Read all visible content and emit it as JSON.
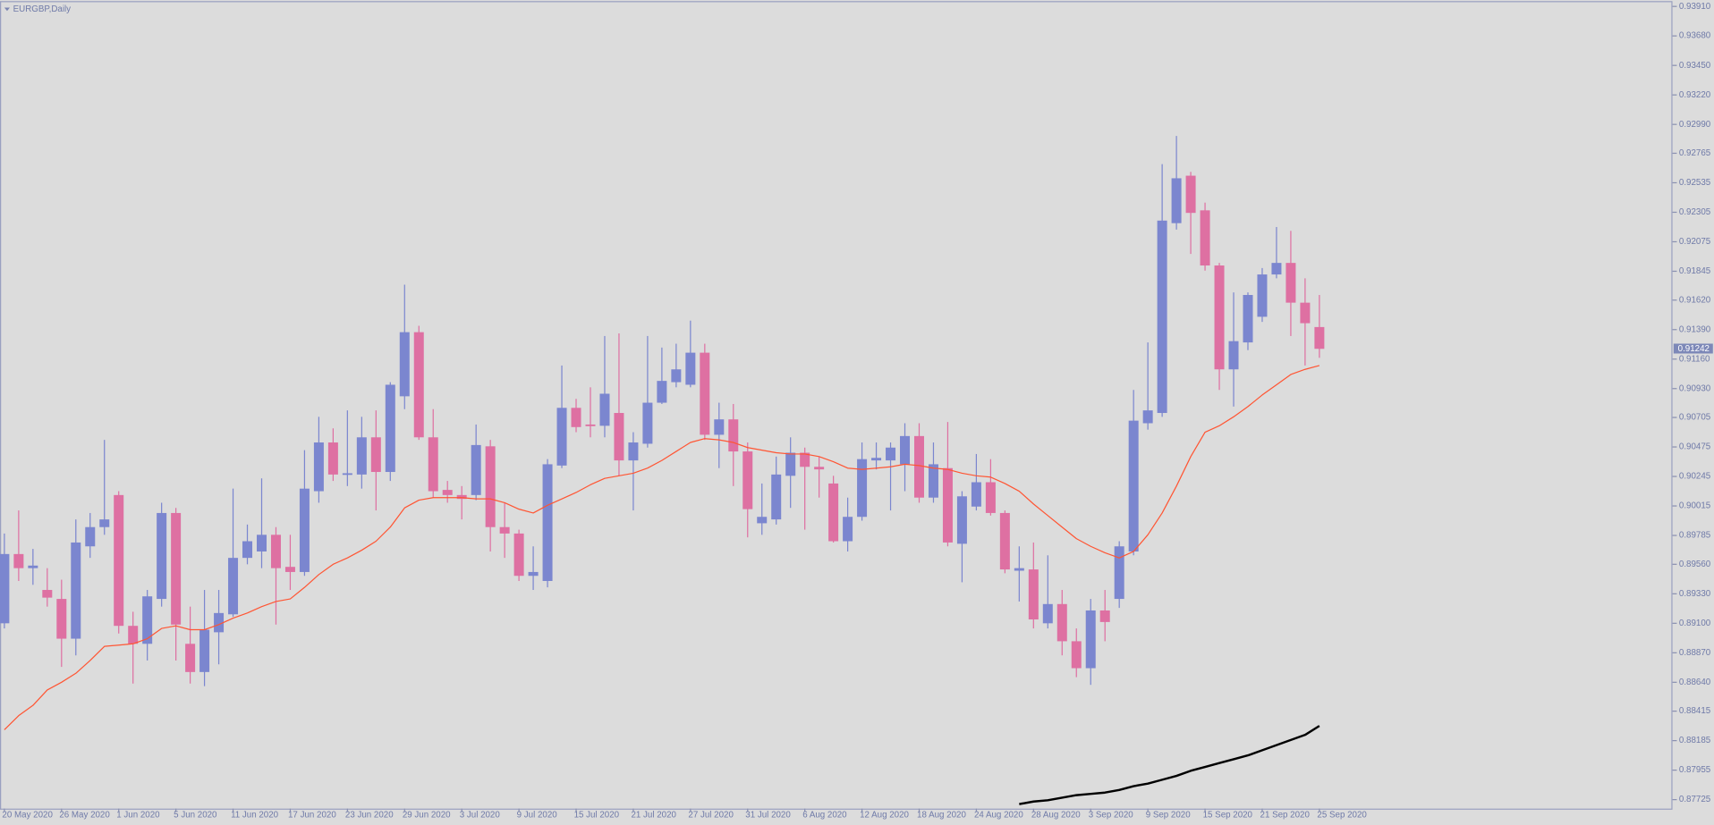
{
  "chart_data": {
    "type": "candlestick",
    "title": "EURGBP,Daily",
    "categories": [
      "20 May 2020",
      null,
      null,
      null,
      "26 May 2020",
      null,
      null,
      null,
      "1 Jun 2020",
      null,
      null,
      null,
      "5 Jun 2020",
      null,
      null,
      null,
      "11 Jun 2020",
      null,
      null,
      null,
      "17 Jun 2020",
      null,
      null,
      null,
      "23 Jun 2020",
      null,
      null,
      null,
      "29 Jun 2020",
      null,
      null,
      null,
      "3 Jul 2020",
      null,
      null,
      null,
      "9 Jul 2020",
      null,
      null,
      null,
      "15 Jul 2020",
      null,
      null,
      null,
      "21 Jul 2020",
      null,
      null,
      null,
      "27 Jul 2020",
      null,
      null,
      null,
      "31 Jul 2020",
      null,
      null,
      null,
      "6 Aug 2020",
      null,
      null,
      null,
      "12 Aug 2020",
      null,
      null,
      null,
      "18 Aug 2020",
      null,
      null,
      null,
      "24 Aug 2020",
      null,
      null,
      null,
      "28 Aug 2020",
      null,
      null,
      null,
      "3 Sep 2020",
      null,
      null,
      null,
      "9 Sep 2020",
      null,
      null,
      null,
      "15 Sep 2020",
      null,
      null,
      null,
      "21 Sep 2020",
      null,
      null,
      null,
      "25 Sep 2020"
    ],
    "open": [
      0.891,
      0.8964,
      0.8953,
      0.8936,
      0.8929,
      0.8898,
      0.897,
      0.8985,
      0.901,
      0.8908,
      0.8894,
      0.8929,
      0.8996,
      0.8894,
      0.8872,
      0.8903,
      0.8917,
      0.8961,
      0.8966,
      0.8979,
      0.8954,
      0.895,
      0.9013,
      0.9051,
      0.9026,
      0.9026,
      0.9055,
      0.9028,
      0.9087,
      0.9137,
      0.9055,
      0.9014,
      0.901,
      0.901,
      0.9048,
      0.8985,
      0.898,
      0.8947,
      0.8943,
      0.9033,
      0.9078,
      0.9065,
      0.9064,
      0.9074,
      0.9037,
      0.905,
      0.9082,
      0.9098,
      0.9096,
      0.9121,
      0.9057,
      0.9069,
      0.9044,
      0.8988,
      0.8991,
      0.9025,
      0.9043,
      0.9032,
      0.9019,
      0.8974,
      0.8993,
      0.9037,
      0.9037,
      0.9034,
      0.9056,
      0.9008,
      0.9031,
      0.8972,
      0.9001,
      0.902,
      0.8996,
      0.8951,
      0.8952,
      0.891,
      0.8925,
      0.8896,
      0.8875,
      0.892,
      0.8929,
      0.8966,
      0.9066,
      0.9074,
      0.9222,
      0.9259,
      0.9232,
      0.9189,
      0.9108,
      0.9129,
      0.9149,
      0.9182,
      0.9191,
      0.916,
      0.9141
    ],
    "high": [
      0.898,
      0.8998,
      0.8968,
      0.8953,
      0.8944,
      0.8991,
      0.8996,
      0.9053,
      0.9013,
      0.8919,
      0.8936,
      0.9004,
      0.9,
      0.8923,
      0.8936,
      0.8936,
      0.9015,
      0.8987,
      0.9023,
      0.8985,
      0.8979,
      0.9045,
      0.9071,
      0.9062,
      0.9076,
      0.9071,
      0.9076,
      0.9098,
      0.9174,
      0.9142,
      0.9077,
      0.9021,
      0.9017,
      0.9065,
      0.9053,
      0.9004,
      0.8983,
      0.897,
      0.9038,
      0.9111,
      0.9085,
      0.9094,
      0.9134,
      0.9136,
      0.9059,
      0.9134,
      0.9125,
      0.9128,
      0.9146,
      0.9128,
      0.9082,
      0.9081,
      0.9051,
      0.9019,
      0.904,
      0.9055,
      0.9047,
      0.904,
      0.9025,
      0.9008,
      0.9051,
      0.9051,
      0.9051,
      0.9066,
      0.9066,
      0.9051,
      0.9067,
      0.9013,
      0.9042,
      0.9038,
      0.8998,
      0.897,
      0.8973,
      0.8963,
      0.8936,
      0.8906,
      0.8929,
      0.8936,
      0.8974,
      0.9092,
      0.9129,
      0.9268,
      0.929,
      0.9262,
      0.9238,
      0.9191,
      0.9168,
      0.9168,
      0.9187,
      0.9219,
      0.9216,
      0.9179,
      0.9166
    ],
    "low": [
      0.8906,
      0.8943,
      0.894,
      0.8923,
      0.8876,
      0.8885,
      0.8961,
      0.8979,
      0.8902,
      0.8863,
      0.8881,
      0.8923,
      0.8881,
      0.8863,
      0.8861,
      0.8878,
      0.8915,
      0.8956,
      0.8953,
      0.8909,
      0.8936,
      0.8947,
      0.9004,
      0.9021,
      0.9017,
      0.9015,
      0.8998,
      0.9021,
      0.9077,
      0.9053,
      0.9008,
      0.9004,
      0.8991,
      0.9006,
      0.8966,
      0.8961,
      0.8943,
      0.8936,
      0.8938,
      0.9031,
      0.9059,
      0.9055,
      0.9055,
      0.9025,
      0.8998,
      0.9047,
      0.9081,
      0.9094,
      0.9094,
      0.9053,
      0.9031,
      0.9017,
      0.8977,
      0.8979,
      0.8987,
      0.9,
      0.8983,
      0.9008,
      0.8973,
      0.8966,
      0.899,
      0.903,
      0.8998,
      0.9013,
      0.9004,
      0.9004,
      0.897,
      0.8942,
      0.8998,
      0.8994,
      0.8949,
      0.8927,
      0.8906,
      0.8906,
      0.8885,
      0.8868,
      0.8862,
      0.8896,
      0.8922,
      0.8963,
      0.9061,
      0.9071,
      0.9217,
      0.9198,
      0.9185,
      0.9092,
      0.9079,
      0.9123,
      0.9145,
      0.9179,
      0.9134,
      0.9111,
      0.9117
    ],
    "close": [
      0.8964,
      0.8953,
      0.8955,
      0.893,
      0.8898,
      0.8973,
      0.8985,
      0.8991,
      0.8908,
      0.8894,
      0.8931,
      0.8996,
      0.8909,
      0.8872,
      0.8905,
      0.8918,
      0.8961,
      0.8974,
      0.8979,
      0.8953,
      0.895,
      0.9015,
      0.9051,
      0.9026,
      0.9027,
      0.9055,
      0.9028,
      0.9096,
      0.9137,
      0.9055,
      0.9013,
      0.901,
      0.9007,
      0.9049,
      0.8985,
      0.898,
      0.8947,
      0.895,
      0.9034,
      0.9078,
      0.9063,
      0.9064,
      0.9089,
      0.9037,
      0.9051,
      0.9082,
      0.9099,
      0.9108,
      0.9121,
      0.9057,
      0.9069,
      0.9044,
      0.8999,
      0.8993,
      0.9026,
      0.9043,
      0.9032,
      0.903,
      0.8974,
      0.8993,
      0.9038,
      0.9039,
      0.9047,
      0.9056,
      0.9008,
      0.9034,
      0.8973,
      0.9009,
      0.902,
      0.8996,
      0.8952,
      0.8953,
      0.8913,
      0.8925,
      0.8896,
      0.8875,
      0.892,
      0.8911,
      0.897,
      0.9068,
      0.9076,
      0.9224,
      0.9257,
      0.923,
      0.9189,
      0.9108,
      0.913,
      0.9166,
      0.9182,
      0.9191,
      0.916,
      0.9144,
      0.9124
    ],
    "up_color": "#7b86cf",
    "down_color": "#de70a2",
    "overlays": [
      {
        "color": "#ff5533",
        "width": 1,
        "values": [
          0.8827,
          0.8838,
          0.8846,
          0.8858,
          0.8864,
          0.8871,
          0.8881,
          0.8892,
          0.8893,
          0.8894,
          0.8898,
          0.8906,
          0.8908,
          0.8905,
          0.8905,
          0.8909,
          0.8914,
          0.8918,
          0.8923,
          0.8927,
          0.8929,
          0.8938,
          0.8948,
          0.8956,
          0.8961,
          0.8967,
          0.8974,
          0.8985,
          0.9,
          0.9006,
          0.9008,
          0.9008,
          0.9008,
          0.9007,
          0.9007,
          0.9004,
          0.8999,
          0.8996,
          0.9002,
          0.9007,
          0.9012,
          0.9018,
          0.9023,
          0.9025,
          0.9027,
          0.9031,
          0.9037,
          0.9044,
          0.9051,
          0.9054,
          0.9053,
          0.9051,
          0.9047,
          0.9045,
          0.9043,
          0.9042,
          0.9042,
          0.904,
          0.9036,
          0.9031,
          0.903,
          0.9031,
          0.9032,
          0.9034,
          0.9033,
          0.9031,
          0.903,
          0.9027,
          0.9025,
          0.9024,
          0.9019,
          0.9013,
          0.9003,
          0.8994,
          0.8985,
          0.8976,
          0.897,
          0.8965,
          0.8961,
          0.8966,
          0.8979,
          0.8996,
          0.9017,
          0.904,
          0.9059,
          0.9064,
          0.9071,
          0.9079,
          0.9088,
          0.9096,
          0.9104,
          0.9108,
          0.9111
        ]
      },
      {
        "color": "#000000",
        "width": 2,
        "values": [
          null,
          null,
          null,
          null,
          null,
          null,
          null,
          null,
          null,
          null,
          null,
          null,
          null,
          null,
          null,
          null,
          null,
          null,
          null,
          null,
          null,
          null,
          null,
          null,
          null,
          null,
          null,
          null,
          null,
          null,
          null,
          null,
          null,
          null,
          null,
          null,
          null,
          null,
          null,
          null,
          null,
          null,
          null,
          null,
          null,
          null,
          null,
          null,
          null,
          null,
          null,
          null,
          null,
          null,
          null,
          null,
          null,
          null,
          null,
          null,
          null,
          null,
          null,
          null,
          null,
          null,
          null,
          null,
          null,
          null,
          null,
          0.8769,
          0.8771,
          0.8772,
          0.8774,
          0.8776,
          0.8777,
          0.8778,
          0.878,
          0.8783,
          0.8785,
          0.8788,
          0.8791,
          0.8795,
          0.8798,
          0.8801,
          0.8804,
          0.8807,
          0.8811,
          0.8815,
          0.8819,
          0.8823,
          0.883
        ]
      }
    ],
    "last_price": 0.91242,
    "ylim": [
      0.87655,
      0.93943
    ],
    "yticks": [
      {
        "value": 0.9391,
        "label": "0.93910"
      },
      {
        "value": 0.9368,
        "label": "0.93680"
      },
      {
        "value": 0.9345,
        "label": "0.93450"
      },
      {
        "value": 0.9322,
        "label": "0.93220"
      },
      {
        "value": 0.9299,
        "label": "0.92990"
      },
      0.92765,
      0.92535,
      0.92305,
      0.92075,
      0.91845,
      {
        "value": 0.9162,
        "label": "0.91620"
      },
      {
        "value": 0.9139,
        "label": "0.91390"
      },
      {
        "value": 0.9116,
        "label": "0.91160"
      },
      {
        "value": 0.9093,
        "label": "0.90930"
      },
      0.90705,
      0.90475,
      0.90245,
      0.90015,
      0.89785,
      {
        "value": 0.8956,
        "label": "0.89560"
      },
      {
        "value": 0.8933,
        "label": "0.89330"
      },
      {
        "value": 0.891,
        "label": "0.89100"
      },
      {
        "value": 0.8887,
        "label": "0.88870"
      },
      {
        "value": 0.8864,
        "label": "0.88640"
      },
      0.88415,
      0.88185,
      0.87955,
      0.87725
    ],
    "grid": false
  }
}
